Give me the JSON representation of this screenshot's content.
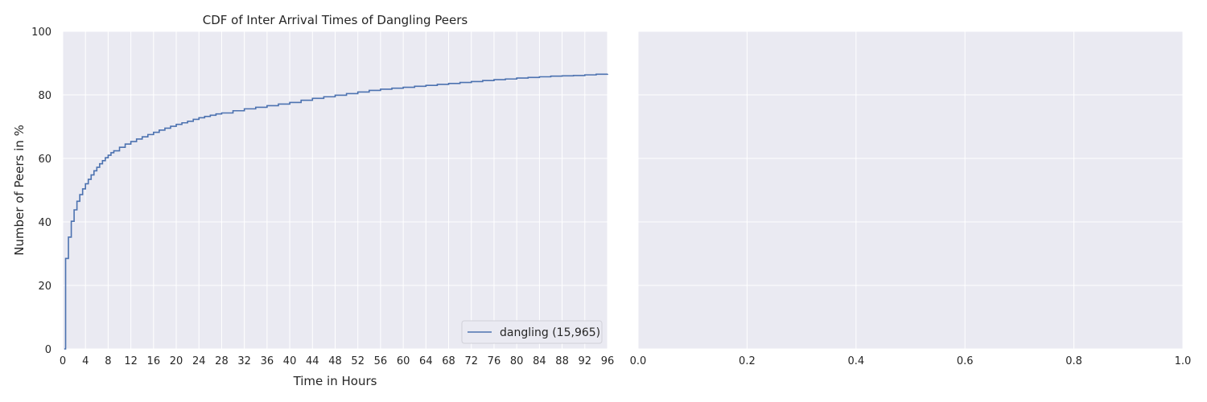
{
  "chart_data": [
    {
      "type": "line",
      "title": "CDF of Inter Arrival Times of Dangling Peers",
      "xlabel": "Time in Hours",
      "ylabel": "Number of Peers in %",
      "xlim": [
        0,
        96
      ],
      "ylim": [
        0,
        100
      ],
      "xticks": [
        0,
        4,
        8,
        12,
        16,
        20,
        24,
        28,
        32,
        36,
        40,
        44,
        48,
        52,
        56,
        60,
        64,
        68,
        72,
        76,
        80,
        84,
        88,
        92,
        96
      ],
      "yticks": [
        0,
        20,
        40,
        60,
        80,
        100
      ],
      "grid": true,
      "legend_position": "lower-right",
      "style": "step",
      "series": [
        {
          "name": "dangling (15,965)",
          "color": "#4c72b0",
          "x": [
            0.25,
            0.5,
            1.0,
            1.5,
            2.0,
            2.5,
            3.0,
            3.5,
            4.0,
            4.5,
            5.0,
            5.5,
            6.0,
            6.5,
            7.0,
            7.5,
            8.0,
            8.5,
            9.0,
            10.0,
            11.0,
            12.0,
            13.0,
            14.0,
            15.0,
            16.0,
            17.0,
            18.0,
            19.0,
            20.0,
            21.0,
            22.0,
            23.0,
            24.0,
            25.0,
            26.0,
            27.0,
            28.0,
            30.0,
            32.0,
            34.0,
            36.0,
            38.0,
            40.0,
            42.0,
            44.0,
            46.0,
            48.0,
            50.0,
            52.0,
            54.0,
            56.0,
            58.0,
            60.0,
            62.0,
            64.0,
            66.0,
            68.0,
            70.0,
            72.0,
            74.0,
            76.0,
            78.0,
            80.0,
            82.0,
            84.0,
            86.0,
            88.0,
            90.0,
            92.0,
            94.0,
            96.0
          ],
          "y": [
            0,
            28.5,
            35.2,
            40.2,
            43.8,
            46.5,
            48.6,
            50.4,
            52.0,
            53.4,
            54.8,
            56.1,
            57.2,
            58.3,
            59.3,
            60.2,
            61.0,
            61.8,
            62.4,
            63.5,
            64.5,
            65.3,
            66.1,
            66.8,
            67.5,
            68.2,
            68.9,
            69.5,
            70.1,
            70.7,
            71.2,
            71.7,
            72.3,
            72.8,
            73.2,
            73.6,
            74.0,
            74.3,
            75.0,
            75.6,
            76.1,
            76.6,
            77.1,
            77.6,
            78.3,
            78.9,
            79.4,
            79.9,
            80.4,
            80.9,
            81.4,
            81.8,
            82.1,
            82.4,
            82.7,
            83.0,
            83.3,
            83.6,
            83.9,
            84.2,
            84.5,
            84.8,
            85.0,
            85.3,
            85.5,
            85.7,
            85.9,
            86.0,
            86.1,
            86.3,
            86.5,
            86.6
          ]
        }
      ]
    },
    {
      "type": "line",
      "title": "",
      "xlabel": "",
      "ylabel": "",
      "xlim": [
        0,
        1
      ],
      "ylim": [
        0,
        100
      ],
      "xticks": [
        0.0,
        0.2,
        0.4,
        0.6,
        0.8,
        1.0
      ],
      "xtick_labels": [
        "0.0",
        "0.2",
        "0.4",
        "0.6",
        "0.8",
        "1.0"
      ],
      "yticks": [
        0,
        20,
        40,
        60,
        80,
        100
      ],
      "grid": true,
      "series": []
    }
  ],
  "colors": {
    "axes_background": "#eaeaf2",
    "grid": "#ffffff",
    "text": "#262626",
    "line": "#4c72b0"
  }
}
